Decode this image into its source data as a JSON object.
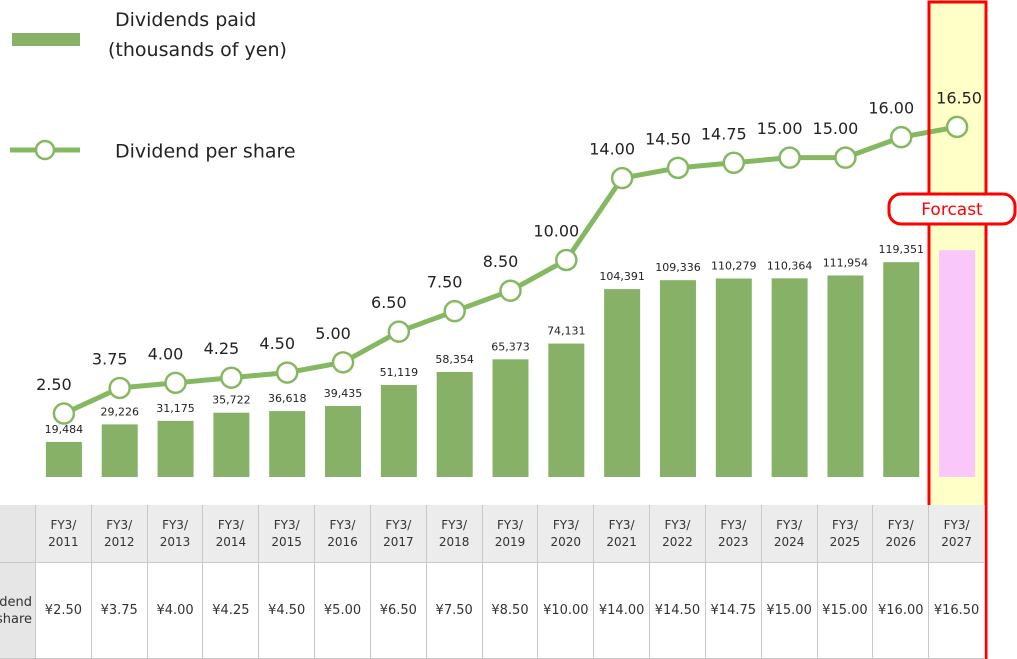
{
  "chart_data": {
    "type": "bar-line",
    "categories": [
      "FY3/\n2011",
      "FY3/\n2012",
      "FY3/\n2013",
      "FY3/\n2014",
      "FY3/\n2015",
      "FY3/\n2016",
      "FY3/\n2017",
      "FY3/\n2018",
      "FY3/\n2019",
      "FY3/\n2020",
      "FY3/\n2021",
      "FY3/\n2022",
      "FY3/\n2023",
      "FY3/\n2024",
      "FY3/\n2025",
      "FY3/\n2026",
      "FY3/\n2027"
    ],
    "series": [
      {
        "name": "Dividends paid\n(thousands of yen)",
        "type": "bar",
        "color": "#86b166",
        "forecast_color": "#f9c8f9",
        "values": [
          19484,
          29226,
          31175,
          35722,
          36618,
          39435,
          51119,
          58354,
          65373,
          74131,
          104391,
          109336,
          110279,
          110364,
          111954,
          119351,
          126000
        ],
        "value_labels": [
          "19,484",
          "29,226",
          "31,175",
          "35,722",
          "36,618",
          "39,435",
          "51,119",
          "58,354",
          "65,373",
          "74,131",
          "104,391",
          "109,336",
          "110,279",
          "110,364",
          "111,954",
          "119,351",
          null
        ]
      },
      {
        "name": "Dividend per share",
        "type": "line",
        "axis": "y2",
        "color": "#86b862",
        "values": [
          2.5,
          3.75,
          4,
          4.25,
          4.5,
          5,
          6.5,
          7.5,
          8.5,
          10,
          14,
          14.5,
          14.75,
          15,
          15,
          16,
          16.5
        ],
        "value_labels": [
          "2.50",
          "3.75",
          "4.00",
          "4.25",
          "4.50",
          "5.00",
          "6.50",
          "7.50",
          "8.50",
          "10.00",
          "14.00",
          "14.50",
          "14.75",
          "15.00",
          "15.00",
          "16.00",
          "16.50"
        ]
      }
    ],
    "ylim": [
      0,
      265000
    ],
    "y2lim": [
      -0.6,
      22.7
    ],
    "annotation": "Forcast"
  },
  "table": {
    "row_label": "Dividend\nper share",
    "cells": [
      "¥2.50",
      "¥3.75",
      "¥4.00",
      "¥4.25",
      "¥4.50",
      "¥5.00",
      "¥6.50",
      "¥7.50",
      "¥8.50",
      "¥10.00",
      "¥14.00",
      "¥14.50",
      "¥14.75",
      "¥15.00",
      "¥15.00",
      "¥16.00",
      "¥16.50"
    ]
  }
}
